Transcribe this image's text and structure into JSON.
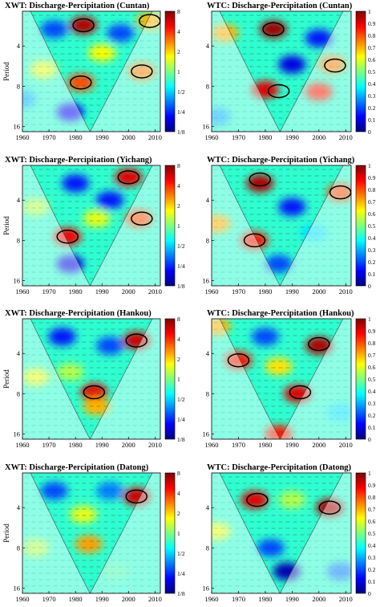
{
  "chart_data": [
    {
      "type": "heatmap",
      "title": "XWT: Discharge-Percipitation (Cuntan)",
      "ylabel": "Period",
      "x_ticks": [
        "1960",
        "1970",
        "1980",
        "1990",
        "2000",
        "2010"
      ],
      "xlim": [
        1960,
        2012
      ],
      "y_ticks": [
        "4",
        "8",
        "16"
      ],
      "colorbar_ticks": [
        "8",
        "4",
        "2",
        "1",
        "1/2",
        "1/4",
        "1/8"
      ],
      "colorbar_colors": [
        "#00007f",
        "#0000ff",
        "#007fff",
        "#00ffff",
        "#7fff7f",
        "#ffff00",
        "#ff7f00",
        "#ff0000",
        "#7f0000"
      ],
      "regions": [
        {
          "x": 1983,
          "p": 2.8,
          "level": 0.95
        },
        {
          "x": 1982,
          "p": 7.5,
          "level": 0.8
        },
        {
          "x": 2005,
          "p": 6.2,
          "level": 0.75
        },
        {
          "x": 2008,
          "p": 2.6,
          "level": 0.7
        },
        {
          "x": 1968,
          "p": 6.0,
          "level": 0.6
        },
        {
          "x": 1990,
          "p": 4.5,
          "level": 0.62
        },
        {
          "x": 1978,
          "p": 12.5,
          "level": 0.12
        },
        {
          "x": 1972,
          "p": 3.0,
          "level": 0.2
        },
        {
          "x": 1997,
          "p": 3.2,
          "level": 0.2
        },
        {
          "x": 1960,
          "p": 10.0,
          "level": 0.3
        }
      ],
      "significance_contours": [
        {
          "x": 1983,
          "p": 2.8
        },
        {
          "x": 1982,
          "p": 7.5
        },
        {
          "x": 2005,
          "p": 6.2
        },
        {
          "x": 2008,
          "p": 2.6
        }
      ]
    },
    {
      "type": "heatmap",
      "title": "WTC: Discharge-Percipitation (Cuntan)",
      "ylabel": "",
      "x_ticks": [
        "1960",
        "1970",
        "1980",
        "1990",
        "2000",
        "2010"
      ],
      "xlim": [
        1960,
        2012
      ],
      "y_ticks": [
        "4",
        "8",
        "16"
      ],
      "colorbar_ticks": [
        "1",
        "0.9",
        "0.8",
        "0.7",
        "0.6",
        "0.5",
        "0.4",
        "0.3",
        "0.2",
        "0.1",
        "0"
      ],
      "colorbar_colors": [
        "#00007f",
        "#0000ff",
        "#007fff",
        "#00ffff",
        "#7fff7f",
        "#ffff00",
        "#ff7f00",
        "#ff0000",
        "#7f0000"
      ],
      "regions": [
        {
          "x": 1983,
          "p": 3.0,
          "level": 0.97
        },
        {
          "x": 1980,
          "p": 8.5,
          "level": 0.9
        },
        {
          "x": 2000,
          "p": 8.8,
          "level": 0.85
        },
        {
          "x": 2005,
          "p": 5.5,
          "level": 0.75
        },
        {
          "x": 1965,
          "p": 3.2,
          "level": 0.7
        },
        {
          "x": 1962,
          "p": 13.5,
          "level": 0.3
        },
        {
          "x": 1990,
          "p": 5.5,
          "level": 0.1
        },
        {
          "x": 2000,
          "p": 3.5,
          "level": 0.15
        }
      ],
      "significance_contours": [
        {
          "x": 1983,
          "p": 3.0
        },
        {
          "x": 1985,
          "p": 8.7
        },
        {
          "x": 2006,
          "p": 5.6
        }
      ]
    },
    {
      "type": "heatmap",
      "title": "XWT: Discharge-Percipitation (Yichang)",
      "ylabel": "Period",
      "x_ticks": [
        "1960",
        "1970",
        "1980",
        "1990",
        "2000",
        "2010"
      ],
      "xlim": [
        1960,
        2012
      ],
      "y_ticks": [
        "4",
        "8",
        "16"
      ],
      "colorbar_ticks": [
        "8",
        "4",
        "2",
        "1",
        "1/2",
        "1/4",
        "1/8"
      ],
      "colorbar_colors": [
        "#00007f",
        "#0000ff",
        "#007fff",
        "#00ffff",
        "#7fff7f",
        "#ffff00",
        "#ff7f00",
        "#ff0000",
        "#7f0000"
      ],
      "regions": [
        {
          "x": 2000,
          "p": 2.7,
          "level": 0.9
        },
        {
          "x": 1977,
          "p": 7.5,
          "level": 0.88
        },
        {
          "x": 2004,
          "p": 5.5,
          "level": 0.8
        },
        {
          "x": 1988,
          "p": 5.5,
          "level": 0.6
        },
        {
          "x": 1980,
          "p": 3.0,
          "level": 0.15
        },
        {
          "x": 1993,
          "p": 4.0,
          "level": 0.15
        },
        {
          "x": 1978,
          "p": 12.0,
          "level": 0.1
        },
        {
          "x": 1965,
          "p": 4.5,
          "level": 0.55
        }
      ],
      "significance_contours": [
        {
          "x": 2000,
          "p": 2.7
        },
        {
          "x": 1977,
          "p": 7.5
        },
        {
          "x": 2005,
          "p": 5.5
        }
      ]
    },
    {
      "type": "heatmap",
      "title": "WTC: Discharge-Percipitation (Yichang)",
      "ylabel": "",
      "x_ticks": [
        "1960",
        "1970",
        "1980",
        "1990",
        "2000",
        "2010"
      ],
      "xlim": [
        1960,
        2012
      ],
      "y_ticks": [
        "4",
        "8",
        "16"
      ],
      "colorbar_ticks": [
        "1",
        "0.9",
        "0.8",
        "0.7",
        "0.6",
        "0.5",
        "0.4",
        "0.3",
        "0.2",
        "0.1",
        "0"
      ],
      "colorbar_colors": [
        "#00007f",
        "#0000ff",
        "#007fff",
        "#00ffff",
        "#7fff7f",
        "#ffff00",
        "#ff7f00",
        "#ff0000",
        "#7f0000"
      ],
      "regions": [
        {
          "x": 1978,
          "p": 3.0,
          "level": 0.95
        },
        {
          "x": 1976,
          "p": 8.0,
          "level": 0.85
        },
        {
          "x": 2008,
          "p": 3.5,
          "level": 0.8
        },
        {
          "x": 1998,
          "p": 7.0,
          "level": 0.35
        },
        {
          "x": 1990,
          "p": 4.5,
          "level": 0.15
        },
        {
          "x": 1962,
          "p": 6.0,
          "level": 0.7
        },
        {
          "x": 1985,
          "p": 12.0,
          "level": 0.2
        }
      ],
      "significance_contours": [
        {
          "x": 1978,
          "p": 2.8
        },
        {
          "x": 1976,
          "p": 8.0
        },
        {
          "x": 2008,
          "p": 3.5
        }
      ]
    },
    {
      "type": "heatmap",
      "title": "XWT: Discharge-Percipitation (Hankou)",
      "ylabel": "Period",
      "x_ticks": [
        "1960",
        "1970",
        "1980",
        "1990",
        "2000",
        "2010"
      ],
      "xlim": [
        1960,
        2012
      ],
      "y_ticks": [
        "4",
        "8",
        "16"
      ],
      "colorbar_ticks": [
        "8",
        "4",
        "2",
        "1",
        "1/2",
        "1/4",
        "1/8"
      ],
      "colorbar_colors": [
        "#00007f",
        "#0000ff",
        "#007fff",
        "#00ffff",
        "#7fff7f",
        "#ffff00",
        "#ff7f00",
        "#ff0000",
        "#7f0000"
      ],
      "regions": [
        {
          "x": 2003,
          "p": 3.2,
          "level": 0.92
        },
        {
          "x": 1987,
          "p": 7.8,
          "level": 0.9
        },
        {
          "x": 1988,
          "p": 10.0,
          "level": 0.7
        },
        {
          "x": 1975,
          "p": 3.0,
          "level": 0.15
        },
        {
          "x": 1993,
          "p": 3.5,
          "level": 0.2
        },
        {
          "x": 1965,
          "p": 6.0,
          "level": 0.6
        },
        {
          "x": 1978,
          "p": 5.5,
          "level": 0.55
        }
      ],
      "significance_contours": [
        {
          "x": 2003,
          "p": 3.2
        },
        {
          "x": 1987,
          "p": 7.8
        }
      ]
    },
    {
      "type": "heatmap",
      "title": "WTC: Discharge-Percipitation (Hankou)",
      "ylabel": "",
      "x_ticks": [
        "1960",
        "1970",
        "1980",
        "1990",
        "2000",
        "2010"
      ],
      "xlim": [
        1960,
        2012
      ],
      "y_ticks": [
        "4",
        "8",
        "16"
      ],
      "colorbar_ticks": [
        "1",
        "0.9",
        "0.8",
        "0.7",
        "0.6",
        "0.5",
        "0.4",
        "0.3",
        "0.2",
        "0.1",
        "0"
      ],
      "colorbar_colors": [
        "#00007f",
        "#0000ff",
        "#007fff",
        "#00ffff",
        "#7fff7f",
        "#ffff00",
        "#ff7f00",
        "#ff0000",
        "#7f0000"
      ],
      "regions": [
        {
          "x": 2000,
          "p": 3.5,
          "level": 0.95
        },
        {
          "x": 1992,
          "p": 8.0,
          "level": 0.9
        },
        {
          "x": 1970,
          "p": 4.5,
          "level": 0.85
        },
        {
          "x": 1985,
          "p": 5.0,
          "level": 0.65
        },
        {
          "x": 1980,
          "p": 3.0,
          "level": 0.2
        },
        {
          "x": 1985,
          "p": 16.0,
          "level": 0.85
        },
        {
          "x": 2008,
          "p": 11.0,
          "level": 0.35
        },
        {
          "x": 1962,
          "p": 2.5,
          "level": 0.7
        }
      ],
      "significance_contours": [
        {
          "x": 2000,
          "p": 3.4
        },
        {
          "x": 1993,
          "p": 7.8
        },
        {
          "x": 1970,
          "p": 4.5
        }
      ]
    },
    {
      "type": "heatmap",
      "title": "XWT: Discharge-Percipitation (Datong)",
      "ylabel": "Period",
      "x_ticks": [
        "1960",
        "1970",
        "1980",
        "1990",
        "2000",
        "2010"
      ],
      "xlim": [
        1960,
        2012
      ],
      "y_ticks": [
        "4",
        "8",
        "16"
      ],
      "colorbar_ticks": [
        "8",
        "4",
        "2",
        "1",
        "1/2",
        "1/4",
        "1/8"
      ],
      "colorbar_colors": [
        "#00007f",
        "#0000ff",
        "#007fff",
        "#00ffff",
        "#7fff7f",
        "#ffff00",
        "#ff7f00",
        "#ff0000",
        "#7f0000"
      ],
      "regions": [
        {
          "x": 2003,
          "p": 3.3,
          "level": 0.92
        },
        {
          "x": 1985,
          "p": 7.5,
          "level": 0.72
        },
        {
          "x": 1983,
          "p": 4.5,
          "level": 0.6
        },
        {
          "x": 1972,
          "p": 3.0,
          "level": 0.2
        },
        {
          "x": 1993,
          "p": 3.0,
          "level": 0.25
        },
        {
          "x": 1995,
          "p": 12.0,
          "level": 0.45
        },
        {
          "x": 1965,
          "p": 8.0,
          "level": 0.55
        }
      ],
      "significance_contours": [
        {
          "x": 2003,
          "p": 3.3
        }
      ]
    },
    {
      "type": "heatmap",
      "title": "WTC: Discharge-Percipitation (Datong)",
      "ylabel": "",
      "x_ticks": [
        "1960",
        "1970",
        "1980",
        "1990",
        "2000",
        "2010"
      ],
      "xlim": [
        1960,
        2012
      ],
      "y_ticks": [
        "4",
        "8",
        "16"
      ],
      "colorbar_ticks": [
        "1",
        "0.9",
        "0.8",
        "0.7",
        "0.6",
        "0.5",
        "0.4",
        "0.3",
        "0.2",
        "0.1",
        "0"
      ],
      "colorbar_colors": [
        "#00007f",
        "#0000ff",
        "#007fff",
        "#00ffff",
        "#7fff7f",
        "#ffff00",
        "#ff7f00",
        "#ff0000",
        "#7f0000"
      ],
      "regions": [
        {
          "x": 1976,
          "p": 3.5,
          "level": 0.9
        },
        {
          "x": 2004,
          "p": 4.0,
          "level": 0.95
        },
        {
          "x": 1988,
          "p": 12.0,
          "level": 0.05
        },
        {
          "x": 1982,
          "p": 8.0,
          "level": 0.2
        },
        {
          "x": 1990,
          "p": 3.5,
          "level": 0.55
        },
        {
          "x": 1962,
          "p": 6.0,
          "level": 0.6
        },
        {
          "x": 2008,
          "p": 12.0,
          "level": 0.25
        }
      ],
      "significance_contours": [
        {
          "x": 1977,
          "p": 3.5
        },
        {
          "x": 2004,
          "p": 4.0
        }
      ]
    }
  ]
}
